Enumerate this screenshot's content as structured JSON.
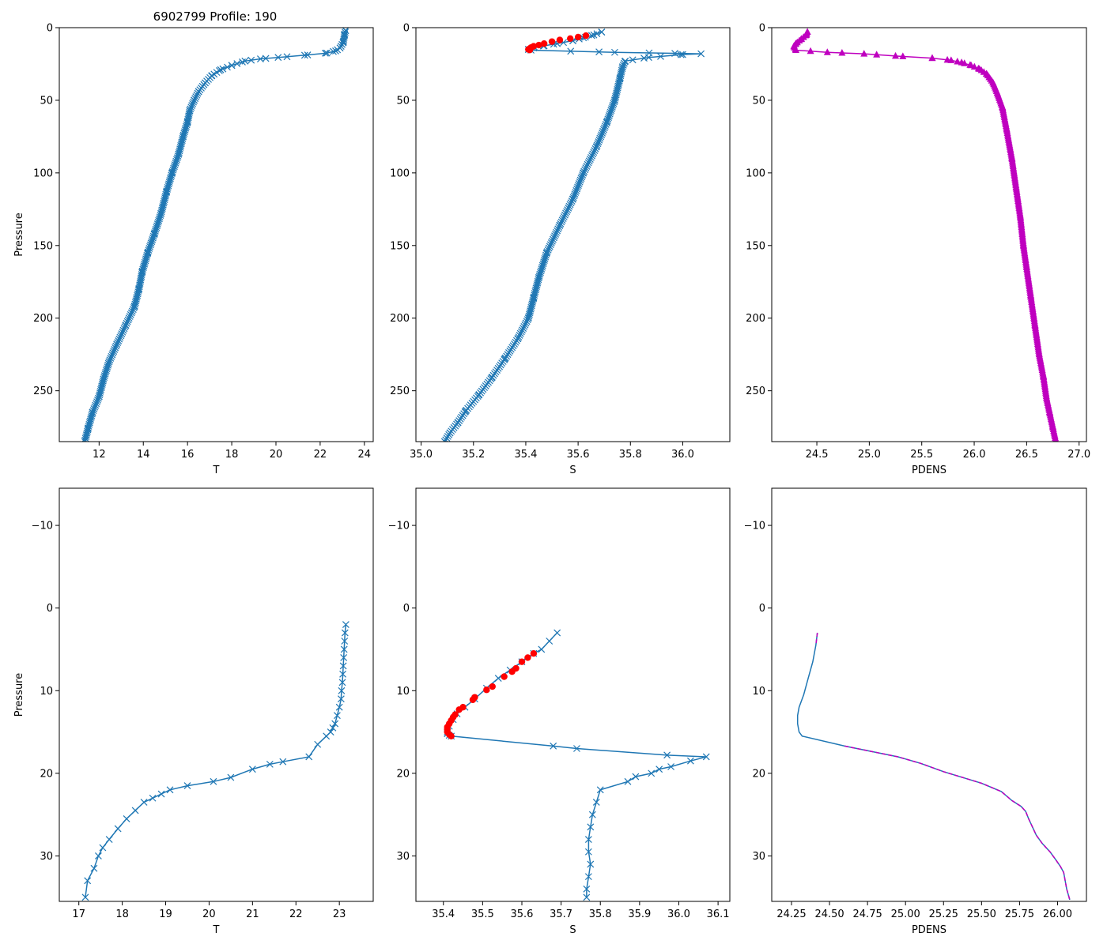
{
  "figure_title": "6902799 Profile: 190",
  "colors": {
    "line": "#1f77b4",
    "flag": "#ff0000",
    "pdens": "#bf00bf",
    "axis": "#000000"
  },
  "chart_data": [
    {
      "id": "top-T",
      "type": "line",
      "xlabel": "T",
      "ylabel": "Pressure",
      "xlim": [
        10.2,
        24.4
      ],
      "ylim": [
        285,
        0
      ],
      "xticks": [
        12,
        14,
        16,
        18,
        20,
        22,
        24
      ],
      "yticks": [
        0,
        50,
        100,
        150,
        200,
        250
      ],
      "series": [
        {
          "name": "T",
          "marker": "x",
          "dense_markers": true,
          "x": [
            23.15,
            23.1,
            23.05,
            22.9,
            22.7,
            22.3,
            21.3,
            20.1,
            19.3,
            18.6,
            18.0,
            17.5,
            17.1,
            16.8,
            16.5,
            16.3,
            16.1,
            16.0,
            15.8,
            15.6,
            15.3,
            15.05,
            14.8,
            14.5,
            14.2,
            13.95,
            13.8,
            13.6,
            13.2,
            12.8,
            12.45,
            12.2,
            12.0,
            11.7,
            11.5,
            11.35
          ],
          "y": [
            2,
            5,
            10,
            14,
            16,
            17.5,
            19,
            20.5,
            21.5,
            23,
            26,
            29,
            33,
            38,
            44,
            50,
            57,
            65,
            75,
            87,
            100,
            113,
            128,
            142,
            155,
            168,
            180,
            192,
            205,
            218,
            230,
            242,
            254,
            265,
            276,
            285
          ]
        }
      ]
    },
    {
      "id": "top-S",
      "type": "line",
      "xlabel": "S",
      "ylabel": "",
      "xlim": [
        34.98,
        36.18
      ],
      "ylim": [
        285,
        0
      ],
      "xticks": [
        35.0,
        35.2,
        35.4,
        35.6,
        35.8,
        36.0
      ],
      "yticks": [
        0,
        50,
        100,
        150,
        200,
        250
      ],
      "series": [
        {
          "name": "S",
          "marker": "x",
          "dense_markers": true,
          "x": [
            35.69,
            35.66,
            35.62,
            35.58,
            35.52,
            35.47,
            35.43,
            35.41,
            35.42,
            35.68,
            35.74,
            35.97,
            36.07,
            36.0,
            35.87,
            35.78,
            35.77,
            35.76,
            35.74,
            35.71,
            35.67,
            35.62,
            35.58,
            35.53,
            35.48,
            35.45,
            35.43,
            35.41,
            35.37,
            35.32,
            35.27,
            35.22,
            35.17,
            35.14,
            35.11,
            35.09
          ],
          "y": [
            3,
            5,
            7,
            9,
            11,
            12.5,
            14,
            15,
            15.5,
            16.7,
            17,
            17.7,
            18,
            18.5,
            20.5,
            23,
            27,
            35,
            50,
            65,
            82,
            100,
            118,
            136,
            155,
            172,
            186,
            200,
            214,
            228,
            241,
            253,
            264,
            272,
            279,
            285
          ]
        },
        {
          "name": "flagged",
          "marker": "circle",
          "color": "flag",
          "x": [
            35.63,
            35.6,
            35.57,
            35.53,
            35.5,
            35.47,
            35.45,
            35.43,
            35.42,
            35.415,
            35.41,
            35.415
          ],
          "y": [
            5.5,
            6.5,
            7.5,
            8.5,
            9.6,
            11,
            12,
            12.8,
            13.7,
            14.4,
            15,
            15.4
          ]
        }
      ]
    },
    {
      "id": "top-PDENS",
      "type": "line",
      "xlabel": "PDENS",
      "ylabel": "",
      "xlim": [
        24.07,
        27.07
      ],
      "ylim": [
        285,
        0
      ],
      "xticks": [
        24.5,
        25.0,
        25.5,
        26.0,
        26.5,
        27.0
      ],
      "yticks": [
        0,
        50,
        100,
        150,
        200,
        250
      ],
      "series": [
        {
          "name": "PDENS",
          "marker": "triangle",
          "dense_markers": true,
          "color": "pdens",
          "x": [
            24.41,
            24.4,
            24.35,
            24.3,
            24.28,
            24.3,
            24.6,
            24.95,
            25.25,
            25.6,
            25.78,
            25.88,
            25.97,
            26.05,
            26.12,
            26.18,
            26.22,
            26.27,
            26.31,
            26.36,
            26.4,
            26.44,
            26.47,
            26.5,
            26.54,
            26.58,
            26.62,
            26.66,
            26.69,
            26.72,
            26.75,
            26.78
          ],
          "y": [
            3,
            5,
            8,
            11,
            13,
            15.5,
            17,
            18,
            19.5,
            21,
            22.5,
            24,
            26,
            28.5,
            32,
            38,
            45,
            55,
            70,
            90,
            110,
            130,
            150,
            165,
            185,
            205,
            225,
            240,
            255,
            265,
            275,
            285
          ]
        }
      ]
    },
    {
      "id": "bottom-T",
      "type": "line",
      "xlabel": "T",
      "ylabel": "Pressure",
      "xlim": [
        16.55,
        23.78
      ],
      "ylim": [
        35.5,
        -14.5
      ],
      "xticks": [
        17,
        18,
        19,
        20,
        21,
        22,
        23
      ],
      "yticks": [
        -10,
        0,
        10,
        20,
        30
      ],
      "series": [
        {
          "name": "T",
          "marker": "x",
          "x": [
            23.15,
            23.13,
            23.12,
            23.11,
            23.1,
            23.09,
            23.08,
            23.07,
            23.05,
            23.04,
            23.0,
            22.95,
            22.9,
            22.85,
            22.8,
            22.7,
            22.5,
            22.3,
            21.7,
            21.4,
            21.0,
            20.5,
            20.1,
            19.5,
            19.1,
            18.9,
            18.7,
            18.5,
            18.3,
            18.1,
            17.9,
            17.7,
            17.55,
            17.45,
            17.35,
            17.2,
            17.15
          ],
          "y": [
            2,
            3,
            4,
            5,
            6,
            7,
            8,
            9,
            10,
            11,
            12,
            13,
            14,
            14.5,
            15,
            15.5,
            16.5,
            18,
            18.6,
            18.9,
            19.5,
            20.5,
            21,
            21.5,
            22,
            22.5,
            23,
            23.5,
            24.5,
            25.5,
            26.7,
            28,
            29,
            30,
            31.5,
            33,
            35
          ]
        }
      ]
    },
    {
      "id": "bottom-S",
      "type": "line",
      "xlabel": "S",
      "ylabel": "",
      "xlim": [
        35.33,
        36.13
      ],
      "ylim": [
        35.5,
        -14.5
      ],
      "xticks": [
        35.4,
        35.5,
        35.6,
        35.7,
        35.8,
        35.9,
        36.0,
        36.1
      ],
      "yticks": [
        -10,
        0,
        10,
        20,
        30
      ],
      "series": [
        {
          "name": "S",
          "marker": "x",
          "x": [
            35.69,
            35.67,
            35.65,
            35.63,
            35.6,
            35.57,
            35.54,
            35.51,
            35.48,
            35.455,
            35.435,
            35.425,
            35.415,
            35.41,
            35.41,
            35.415,
            35.42,
            35.68,
            35.74,
            35.97,
            36.07,
            36.03,
            35.98,
            35.95,
            35.93,
            35.89,
            35.87,
            35.8,
            35.79,
            35.78,
            35.775,
            35.77,
            35.77,
            35.775,
            35.77,
            35.765,
            35.765
          ],
          "y": [
            3,
            4,
            5,
            5.5,
            6.5,
            7.5,
            8.5,
            9.7,
            11,
            12,
            12.8,
            13.5,
            14.3,
            15,
            15.2,
            15.4,
            15.5,
            16.7,
            17,
            17.8,
            18,
            18.5,
            19.2,
            19.5,
            20,
            20.4,
            21,
            22,
            23.5,
            25,
            26.5,
            28,
            29.5,
            31,
            32.5,
            34,
            35
          ]
        },
        {
          "name": "flagged",
          "marker": "circle",
          "color": "flag",
          "x": [
            35.63,
            35.615,
            35.6,
            35.585,
            35.575,
            35.555,
            35.525,
            35.51,
            35.48,
            35.475,
            35.45,
            35.44,
            35.43,
            35.425,
            35.42,
            35.415,
            35.41,
            35.41,
            35.41,
            35.415,
            35.42
          ],
          "y": [
            5.5,
            6.0,
            6.5,
            7.3,
            7.7,
            8.3,
            9.5,
            9.9,
            10.8,
            11.1,
            12.0,
            12.3,
            12.9,
            13.2,
            13.6,
            14.0,
            14.4,
            14.7,
            15.0,
            15.3,
            15.5
          ]
        }
      ]
    },
    {
      "id": "bottom-PDENS",
      "type": "line",
      "xlabel": "PDENS",
      "ylabel": "",
      "xlim": [
        24.12,
        26.19
      ],
      "ylim": [
        35.5,
        -14.5
      ],
      "xticks": [
        24.25,
        24.5,
        24.75,
        25.0,
        25.25,
        25.5,
        25.75,
        26.0
      ],
      "yticks": [
        -10,
        0,
        10,
        20,
        30
      ],
      "series": [
        {
          "name": "PDENS",
          "marker": "none",
          "x": [
            24.42,
            24.41,
            24.39,
            24.36,
            24.33,
            24.3,
            24.29,
            24.29,
            24.3,
            24.32,
            24.6,
            24.95,
            25.1,
            25.25,
            25.5,
            25.63,
            25.7,
            25.76,
            25.79,
            25.81,
            25.86,
            25.9,
            25.95,
            25.99,
            26.02,
            26.04,
            26.05,
            26.06,
            26.08
          ],
          "y": [
            3,
            4.5,
            6.5,
            8.5,
            10.5,
            12,
            13,
            14,
            15,
            15.5,
            16.7,
            18,
            18.8,
            19.8,
            21.2,
            22.2,
            23.3,
            24,
            24.6,
            25.5,
            27.5,
            28.5,
            29.5,
            30.5,
            31.3,
            32,
            33,
            34,
            35.3
          ]
        },
        {
          "name": "PDENS-dash",
          "marker": "none",
          "color": "pdens",
          "dashed": true,
          "x": [
            24.42,
            24.41
          ],
          "y": [
            3,
            4.5
          ]
        },
        {
          "name": "PDENS-dash2",
          "marker": "none",
          "color": "pdens",
          "dashed": true,
          "x": [
            24.6,
            24.95,
            25.1,
            25.25,
            25.5,
            25.63,
            25.7,
            25.76,
            25.79,
            25.81,
            25.86,
            25.9,
            25.95,
            25.99,
            26.02,
            26.04,
            26.05,
            26.06,
            26.08
          ],
          "y": [
            16.7,
            18,
            18.8,
            19.8,
            21.2,
            22.2,
            23.3,
            24,
            24.6,
            25.5,
            27.5,
            28.5,
            29.5,
            30.5,
            31.3,
            32,
            33,
            34,
            35.3
          ]
        }
      ]
    }
  ]
}
